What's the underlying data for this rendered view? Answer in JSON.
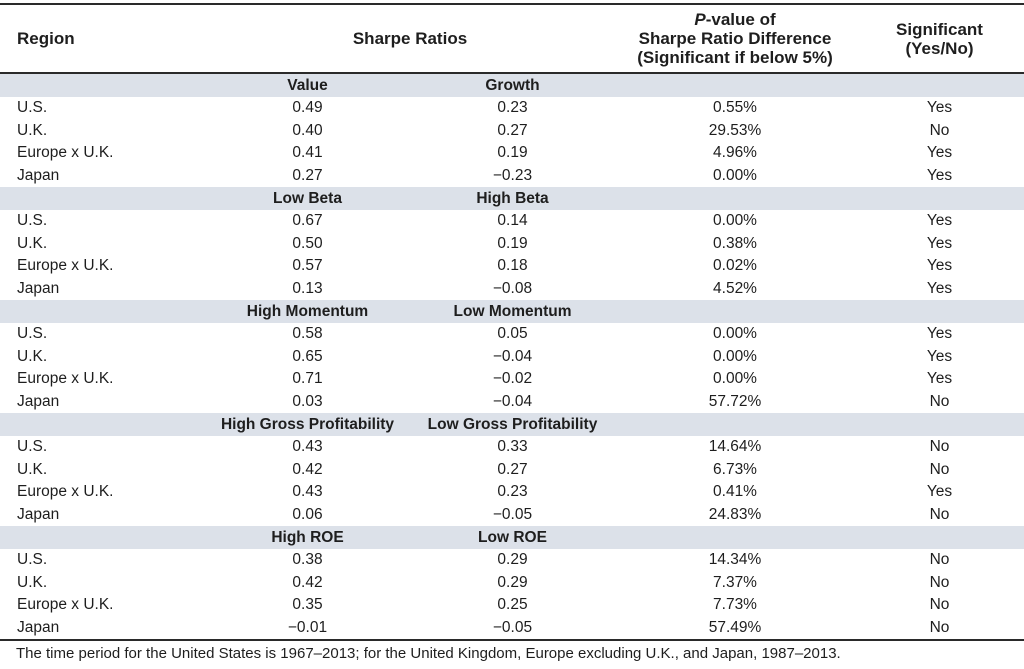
{
  "table": {
    "columns": {
      "region": "Region",
      "sharpe_ratios": "Sharpe Ratios",
      "pvalue_p": "P",
      "pvalue_line1_rest": "-value of",
      "pvalue_line2": "Sharpe Ratio Difference",
      "pvalue_line3": "(Significant if below 5%)",
      "significant_line1": "Significant",
      "significant_line2": "(Yes/No)"
    },
    "sections": [
      {
        "sharpe_1_label": "Value",
        "sharpe_2_label": "Growth",
        "rows": [
          {
            "region": "U.S.",
            "sharpe_1": "0.49",
            "sharpe_2": "0.23",
            "p_value": "0.55%",
            "significant": "Yes"
          },
          {
            "region": "U.K.",
            "sharpe_1": "0.40",
            "sharpe_2": "0.27",
            "p_value": "29.53%",
            "significant": "No"
          },
          {
            "region": "Europe x U.K.",
            "sharpe_1": "0.41",
            "sharpe_2": "0.19",
            "p_value": "4.96%",
            "significant": "Yes"
          },
          {
            "region": "Japan",
            "sharpe_1": "0.27",
            "sharpe_2": "−0.23",
            "p_value": "0.00%",
            "significant": "Yes"
          }
        ]
      },
      {
        "sharpe_1_label": "Low Beta",
        "sharpe_2_label": "High Beta",
        "rows": [
          {
            "region": "U.S.",
            "sharpe_1": "0.67",
            "sharpe_2": "0.14",
            "p_value": "0.00%",
            "significant": "Yes"
          },
          {
            "region": "U.K.",
            "sharpe_1": "0.50",
            "sharpe_2": "0.19",
            "p_value": "0.38%",
            "significant": "Yes"
          },
          {
            "region": "Europe x U.K.",
            "sharpe_1": "0.57",
            "sharpe_2": "0.18",
            "p_value": "0.02%",
            "significant": "Yes"
          },
          {
            "region": "Japan",
            "sharpe_1": "0.13",
            "sharpe_2": "−0.08",
            "p_value": "4.52%",
            "significant": "Yes"
          }
        ]
      },
      {
        "sharpe_1_label": "High Momentum",
        "sharpe_2_label": "Low Momentum",
        "rows": [
          {
            "region": "U.S.",
            "sharpe_1": "0.58",
            "sharpe_2": "0.05",
            "p_value": "0.00%",
            "significant": "Yes"
          },
          {
            "region": "U.K.",
            "sharpe_1": "0.65",
            "sharpe_2": "−0.04",
            "p_value": "0.00%",
            "significant": "Yes"
          },
          {
            "region": "Europe x U.K.",
            "sharpe_1": "0.71",
            "sharpe_2": "−0.02",
            "p_value": "0.00%",
            "significant": "Yes"
          },
          {
            "region": "Japan",
            "sharpe_1": "0.03",
            "sharpe_2": "−0.04",
            "p_value": "57.72%",
            "significant": "No"
          }
        ]
      },
      {
        "sharpe_1_label": "High Gross Profitability",
        "sharpe_2_label": "Low Gross Profitability",
        "rows": [
          {
            "region": "U.S.",
            "sharpe_1": "0.43",
            "sharpe_2": "0.33",
            "p_value": "14.64%",
            "significant": "No"
          },
          {
            "region": "U.K.",
            "sharpe_1": "0.42",
            "sharpe_2": "0.27",
            "p_value": "6.73%",
            "significant": "No"
          },
          {
            "region": "Europe x U.K.",
            "sharpe_1": "0.43",
            "sharpe_2": "0.23",
            "p_value": "0.41%",
            "significant": "Yes"
          },
          {
            "region": "Japan",
            "sharpe_1": "0.06",
            "sharpe_2": "−0.05",
            "p_value": "24.83%",
            "significant": "No"
          }
        ]
      },
      {
        "sharpe_1_label": "High ROE",
        "sharpe_2_label": "Low ROE",
        "rows": [
          {
            "region": "U.S.",
            "sharpe_1": "0.38",
            "sharpe_2": "0.29",
            "p_value": "14.34%",
            "significant": "No"
          },
          {
            "region": "U.K.",
            "sharpe_1": "0.42",
            "sharpe_2": "0.29",
            "p_value": "7.37%",
            "significant": "No"
          },
          {
            "region": "Europe x U.K.",
            "sharpe_1": "0.35",
            "sharpe_2": "0.25",
            "p_value": "7.73%",
            "significant": "No"
          },
          {
            "region": "Japan",
            "sharpe_1": "−0.01",
            "sharpe_2": "−0.05",
            "p_value": "57.49%",
            "significant": "No"
          }
        ]
      }
    ]
  },
  "footnote": "The time period for the United States is 1967–2013; for the United Kingdom, Europe excluding U.K., and Japan, 1987–2013.",
  "colors": {
    "band_background": "#dce1e9",
    "rule": "#2a2a2a",
    "text": "#1e1e1e"
  }
}
